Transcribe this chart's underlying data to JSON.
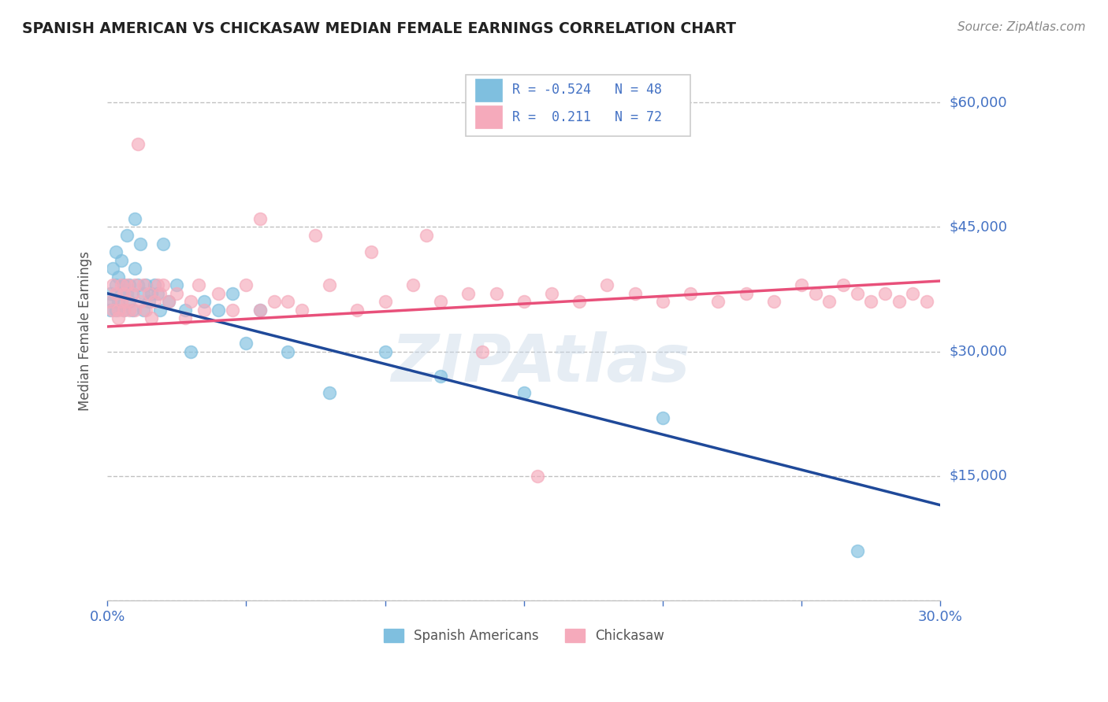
{
  "title": "SPANISH AMERICAN VS CHICKASAW MEDIAN FEMALE EARNINGS CORRELATION CHART",
  "source": "Source: ZipAtlas.com",
  "ylabel": "Median Female Earnings",
  "xmin": 0.0,
  "xmax": 0.3,
  "ymin": 0,
  "ymax": 65000,
  "yticks": [
    0,
    15000,
    30000,
    45000,
    60000
  ],
  "ytick_labels": [
    "",
    "$15,000",
    "$30,000",
    "$45,000",
    "$60,000"
  ],
  "xticks": [
    0.0,
    0.05,
    0.1,
    0.15,
    0.2,
    0.25,
    0.3
  ],
  "blue_color": "#7fbfdf",
  "pink_color": "#f5aabb",
  "blue_line_color": "#1f4999",
  "pink_line_color": "#e8507a",
  "legend_blue_r": "-0.524",
  "legend_blue_n": "48",
  "legend_pink_r": "0.211",
  "legend_pink_n": "72",
  "legend_label_blue": "Spanish Americans",
  "legend_label_pink": "Chickasaw",
  "watermark": "ZIPAtlas",
  "tick_color": "#4472c4",
  "grid_color": "#bbbbbb",
  "blue_line_x0": 0.0,
  "blue_line_y0": 37000,
  "blue_line_x1": 0.3,
  "blue_line_y1": 11500,
  "pink_line_x0": 0.0,
  "pink_line_y0": 33000,
  "pink_line_x1": 0.3,
  "pink_line_y1": 38500,
  "blue_x": [
    0.001,
    0.001,
    0.002,
    0.002,
    0.003,
    0.003,
    0.003,
    0.004,
    0.004,
    0.005,
    0.005,
    0.006,
    0.006,
    0.007,
    0.007,
    0.008,
    0.008,
    0.009,
    0.009,
    0.01,
    0.01,
    0.011,
    0.012,
    0.013,
    0.013,
    0.014,
    0.015,
    0.016,
    0.017,
    0.018,
    0.019,
    0.02,
    0.022,
    0.025,
    0.028,
    0.03,
    0.035,
    0.04,
    0.045,
    0.05,
    0.055,
    0.065,
    0.08,
    0.1,
    0.12,
    0.15,
    0.2,
    0.27
  ],
  "blue_y": [
    37000,
    35000,
    40000,
    36000,
    38000,
    42000,
    35000,
    36000,
    39000,
    37000,
    41000,
    38000,
    35000,
    37000,
    44000,
    36000,
    38000,
    35000,
    37000,
    46000,
    40000,
    38000,
    43000,
    37000,
    35000,
    38000,
    36000,
    37000,
    38000,
    37000,
    35000,
    43000,
    36000,
    38000,
    35000,
    30000,
    36000,
    35000,
    37000,
    31000,
    35000,
    30000,
    25000,
    30000,
    27000,
    25000,
    22000,
    6000
  ],
  "pink_x": [
    0.001,
    0.002,
    0.002,
    0.003,
    0.004,
    0.004,
    0.005,
    0.005,
    0.006,
    0.006,
    0.007,
    0.007,
    0.008,
    0.009,
    0.01,
    0.01,
    0.011,
    0.012,
    0.013,
    0.014,
    0.015,
    0.016,
    0.017,
    0.018,
    0.019,
    0.02,
    0.022,
    0.025,
    0.028,
    0.03,
    0.033,
    0.035,
    0.04,
    0.045,
    0.05,
    0.055,
    0.06,
    0.065,
    0.07,
    0.08,
    0.09,
    0.1,
    0.11,
    0.12,
    0.13,
    0.14,
    0.15,
    0.16,
    0.17,
    0.18,
    0.19,
    0.2,
    0.21,
    0.22,
    0.23,
    0.24,
    0.25,
    0.255,
    0.26,
    0.265,
    0.27,
    0.275,
    0.28,
    0.285,
    0.29,
    0.295,
    0.055,
    0.075,
    0.095,
    0.115,
    0.135,
    0.155
  ],
  "pink_y": [
    36000,
    35000,
    38000,
    37000,
    35000,
    34000,
    36000,
    38000,
    35000,
    37000,
    36000,
    38000,
    35000,
    37000,
    35000,
    38000,
    55000,
    36000,
    38000,
    35000,
    37000,
    34000,
    36000,
    38000,
    37000,
    38000,
    36000,
    37000,
    34000,
    36000,
    38000,
    35000,
    37000,
    35000,
    38000,
    35000,
    36000,
    36000,
    35000,
    38000,
    35000,
    36000,
    38000,
    36000,
    37000,
    37000,
    36000,
    37000,
    36000,
    38000,
    37000,
    36000,
    37000,
    36000,
    37000,
    36000,
    38000,
    37000,
    36000,
    38000,
    37000,
    36000,
    37000,
    36000,
    37000,
    36000,
    46000,
    44000,
    42000,
    44000,
    30000,
    15000
  ]
}
